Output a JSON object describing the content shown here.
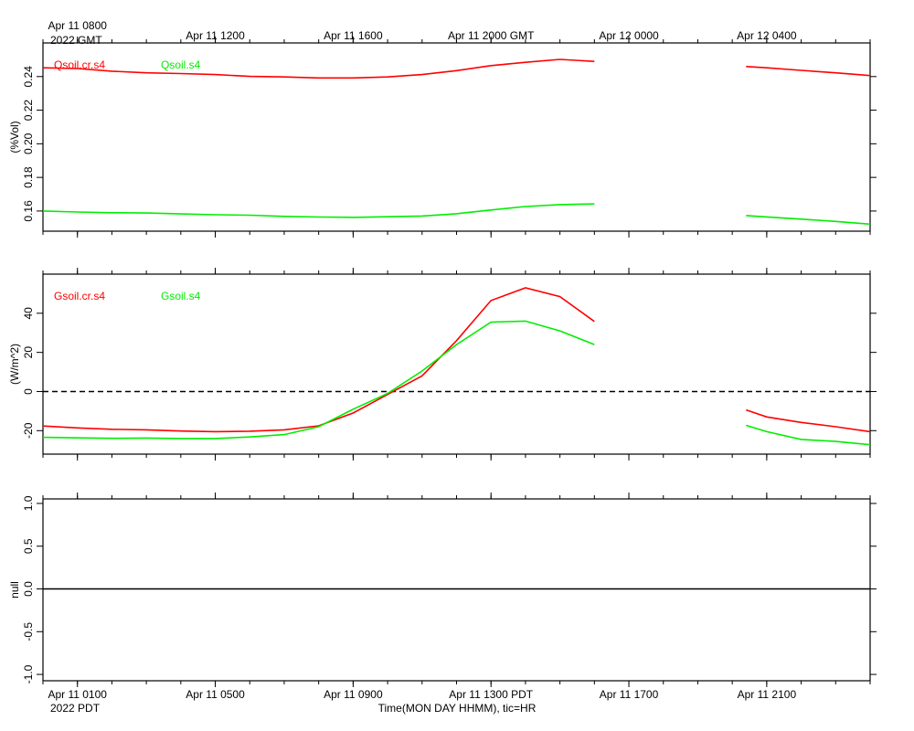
{
  "chart_data": [
    {
      "type": "line",
      "ylabel": "(%Vol)",
      "xlim": [
        0,
        24
      ],
      "minor_xtick_step": 1,
      "x2ticks": [
        {
          "value": 1,
          "label": "Apr 11 0800"
        },
        {
          "value": 5,
          "label": "Apr 11 1200"
        },
        {
          "value": 9,
          "label": "Apr 11 1600"
        },
        {
          "value": 13,
          "label": "Apr 11 2000 GMT"
        },
        {
          "value": 17,
          "label": "Apr 12 0000"
        },
        {
          "value": 21,
          "label": "Apr 12 0400"
        }
      ],
      "x2_sublabel": "2022 GMT",
      "ylim": [
        0.148,
        0.26
      ],
      "yticks": [
        0.16,
        0.18,
        {
          "value": 0.2,
          "label": "0.20"
        },
        0.22,
        0.24
      ],
      "x": [
        0,
        1,
        2,
        3,
        4,
        5,
        6,
        7,
        8,
        9,
        10,
        11,
        12,
        13,
        14,
        15,
        16,
        17,
        20.4,
        21,
        22,
        23,
        24
      ],
      "series": [
        {
          "name": "Qsoil.cr.s4",
          "color": "#ff0000",
          "values": [
            0.2452,
            0.2448,
            0.2432,
            0.2422,
            0.2418,
            0.2412,
            0.2401,
            0.2398,
            0.2392,
            0.2392,
            0.2398,
            0.2412,
            0.2435,
            0.2465,
            0.2485,
            0.2502,
            0.249,
            null,
            0.246,
            0.2452,
            0.2437,
            0.2422,
            0.2406
          ]
        },
        {
          "name": "Qsoil.s4",
          "color": "#00ee00",
          "values": [
            0.16,
            0.1594,
            0.159,
            0.1588,
            0.1583,
            0.1578,
            0.1575,
            0.1568,
            0.1564,
            0.1562,
            0.1566,
            0.157,
            0.1584,
            0.1606,
            0.1627,
            0.1638,
            0.1642,
            null,
            0.1573,
            0.1565,
            0.1552,
            0.1538,
            0.1522
          ]
        }
      ]
    },
    {
      "type": "line",
      "ylabel": "(W/m^2)",
      "xlim": [
        0,
        24
      ],
      "minor_xtick_step": 1,
      "ylim": [
        -32,
        60
      ],
      "yticks": [
        -20,
        0,
        20,
        40
      ],
      "hline": {
        "value": 0,
        "style": "dashed"
      },
      "x": [
        0,
        1,
        2,
        3,
        4,
        5,
        6,
        7,
        8,
        9,
        10,
        11,
        12,
        13,
        14,
        15,
        16,
        17,
        20.4,
        21,
        22,
        23,
        24
      ],
      "series": [
        {
          "name": "Gsoil.cr.s4",
          "color": "#ff0000",
          "values": [
            -17.6,
            -18.6,
            -19.3,
            -19.6,
            -20.2,
            -20.5,
            -20.3,
            -19.6,
            -17.5,
            -11,
            -1.5,
            8,
            26,
            46.5,
            53,
            48.5,
            35.8,
            null,
            -9.4,
            -13,
            -15.8,
            -18,
            -20.5
          ]
        },
        {
          "name": "Gsoil.s4",
          "color": "#00ee00",
          "values": [
            -23.4,
            -23.7,
            -23.9,
            -23.8,
            -24,
            -24,
            -23.2,
            -22,
            -18,
            -9,
            -1,
            10.5,
            24,
            35.5,
            36,
            31,
            24,
            null,
            -17.3,
            -20.5,
            -24.5,
            -25.5,
            -27.2
          ]
        }
      ]
    },
    {
      "type": "line",
      "ylabel": "null",
      "xlim": [
        0,
        24
      ],
      "minor_xtick_step": 1,
      "ylim": [
        -1.074,
        1.053
      ],
      "yticks": [
        {
          "value": -1,
          "label": "-1.0"
        },
        {
          "value": -0.5,
          "label": "-0.5"
        },
        {
          "value": 0,
          "label": "0.0"
        },
        {
          "value": 0.5,
          "label": "0.5"
        },
        {
          "value": 1,
          "label": "1.0"
        }
      ],
      "hline": {
        "value": 0,
        "style": "solid"
      },
      "xticks": [
        {
          "value": 1,
          "label": "Apr 11 0100"
        },
        {
          "value": 5,
          "label": "Apr 11 0500"
        },
        {
          "value": 9,
          "label": "Apr 11 0900"
        },
        {
          "value": 13,
          "label": "Apr 11 1300 PDT"
        },
        {
          "value": 17,
          "label": "Apr 11 1700"
        },
        {
          "value": 21,
          "label": "Apr 11 2100"
        }
      ],
      "x_sublabel": "2022 PDT",
      "xlabel": "Time(MON DAY HHMM), tic=HR",
      "x": [],
      "series": []
    }
  ]
}
